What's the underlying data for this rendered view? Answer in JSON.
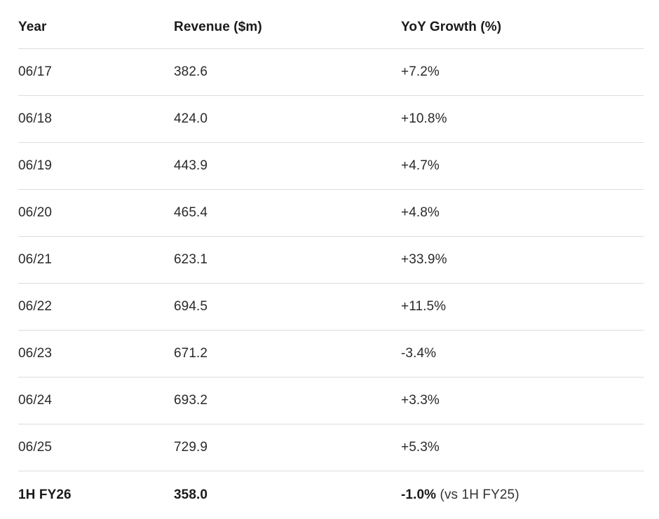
{
  "table": {
    "headers": [
      "Year",
      "Revenue ($m)",
      "YoY Growth (%)"
    ],
    "rows": [
      {
        "year": "06/17",
        "revenue": "382.6",
        "growth": "+7.2%"
      },
      {
        "year": "06/18",
        "revenue": "424.0",
        "growth": "+10.8%"
      },
      {
        "year": "06/19",
        "revenue": "443.9",
        "growth": "+4.7%"
      },
      {
        "year": "06/20",
        "revenue": "465.4",
        "growth": "+4.8%"
      },
      {
        "year": "06/21",
        "revenue": "623.1",
        "growth": "+33.9%"
      },
      {
        "year": "06/22",
        "revenue": "694.5",
        "growth": "+11.5%"
      },
      {
        "year": "06/23",
        "revenue": "671.2",
        "growth": "-3.4%"
      },
      {
        "year": "06/24",
        "revenue": "693.2",
        "growth": "+3.3%"
      },
      {
        "year": "06/25",
        "revenue": "729.9",
        "growth": "+5.3%"
      }
    ],
    "summary": {
      "year": "1H FY26",
      "revenue": "358.0",
      "growth": "-1.0%",
      "growth_note": "(vs 1H FY25)"
    }
  }
}
